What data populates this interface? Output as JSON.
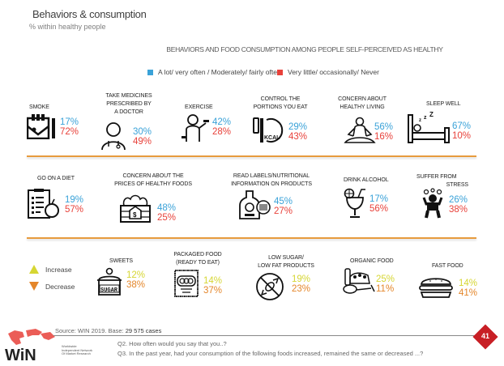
{
  "header": {
    "title": "Behaviors & consumption",
    "subtitle": "% within healthy people",
    "heading": "BEHAVIORS AND FOOD CONSUMPTION AMONG PEOPLE SELF-PERCEIVED AS HEALTHY"
  },
  "legend": {
    "often": {
      "label": "A lot/ very often / Moderately/ fairly often",
      "color": "#3aa2d8"
    },
    "rarely": {
      "label": "Very little/ occasionally/ Never",
      "color": "#e8413a"
    }
  },
  "behaviors_row1": [
    {
      "label": [
        "SMOKE"
      ],
      "icon": "cigarette-icon",
      "often": "17%",
      "rarely": "72%"
    },
    {
      "label": [
        "TAKE MEDICINES",
        "PRESCRIBED BY",
        "A DOCTOR"
      ],
      "icon": "doctor-icon",
      "often": "30%",
      "rarely": "49%"
    },
    {
      "label": [
        "EXERCISE"
      ],
      "icon": "exercise-icon",
      "often": "42%",
      "rarely": "28%"
    },
    {
      "label": [
        "CONTROL THE",
        "PORTIONS YOU EAT"
      ],
      "icon": "kcal-plate-icon",
      "often": "29%",
      "rarely": "43%"
    },
    {
      "label": [
        "CONCERN ABOUT",
        "HEALTHY LIVING"
      ],
      "icon": "meditation-icon",
      "often": "56%",
      "rarely": "16%"
    },
    {
      "label": [
        "SLEEP WELL"
      ],
      "icon": "bed-icon",
      "often": "67%",
      "rarely": "10%"
    }
  ],
  "behaviors_row2": [
    {
      "label": [
        "GO ON A DIET"
      ],
      "icon": "diet-clipboard-icon",
      "often": "19%",
      "rarely": "57%"
    },
    {
      "label": [
        "CONCERN ABOUT THE",
        "PRICES OF HEALTHY FOODS"
      ],
      "icon": "vegetable-crate-icon",
      "often": "48%",
      "rarely": "25%"
    },
    {
      "label": [
        "READ LABELS/NUTRITIONAL",
        "INFORMATION ON PRODUCTS"
      ],
      "icon": "bottle-barcode-icon",
      "often": "45%",
      "rarely": "27%"
    },
    {
      "label": [
        "DRINK ALCOHOL"
      ],
      "icon": "cocktail-icon",
      "often": "17%",
      "rarely": "56%"
    },
    {
      "label": [
        "SUFFER FROM",
        "STRESS"
      ],
      "icon": "stress-icon",
      "often": "26%",
      "rarely": "38%"
    }
  ],
  "trend_legend": {
    "increase": {
      "label": "Increase",
      "color": "#d6d633"
    },
    "decrease": {
      "label": "Decrease",
      "color": "#e4862a"
    }
  },
  "consumption": [
    {
      "label": [
        "SWEETS"
      ],
      "icon": "sugar-jar-icon",
      "increase": "12%",
      "decrease": "38%"
    },
    {
      "label": [
        "PACKAGED FOOD",
        "(READY TO EAT)"
      ],
      "icon": "packaged-food-icon",
      "increase": "14%",
      "decrease": "37%"
    },
    {
      "label": [
        "LOW SUGAR/",
        "LOW FAT PRODUCTS"
      ],
      "icon": "no-candy-icon",
      "increase": "19%",
      "decrease": "23%"
    },
    {
      "label": [
        "ORGANIC FOOD"
      ],
      "icon": "organic-food-icon",
      "increase": "25%",
      "decrease": "11%"
    },
    {
      "label": [
        "FAST FOOD"
      ],
      "icon": "burger-icon",
      "increase": "14%",
      "decrease": "41%"
    }
  ],
  "footer": {
    "source_prefix": "Source: WIN 2019. Base: ",
    "source_base": "29 575 cases",
    "q2": "Q2. How often would you say that you..?",
    "q3": "Q3. In the past year, had your consumption of the following foods increased, remained the same or decreased ...?",
    "page_number": "41",
    "logo_text": "WiN",
    "logo_sub": [
      "Worldwide",
      "Independent Network",
      "Of Market Research"
    ]
  }
}
